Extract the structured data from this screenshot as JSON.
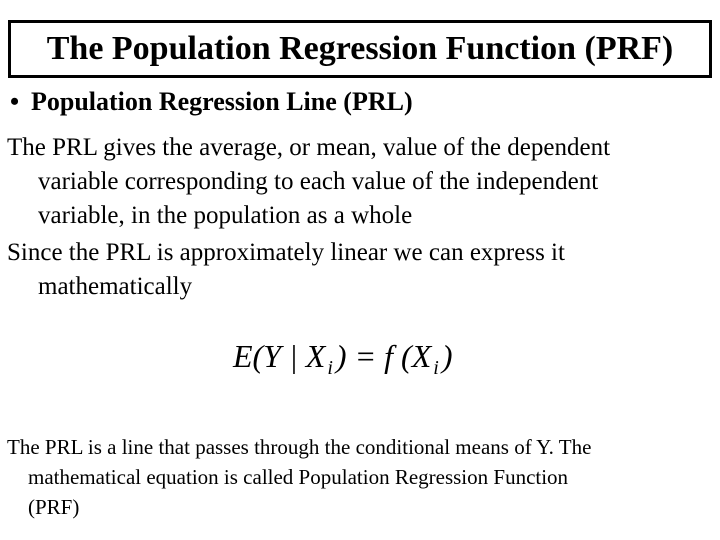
{
  "slide": {
    "title": "The Population Regression Function (PRF)",
    "bullet": {
      "marker": "•",
      "label": "Population Regression Line (PRL)"
    },
    "para_prl_definition": {
      "lines": [
        "The PRL gives the average, or mean, value of the dependent",
        "variable corresponding to each value of the independent",
        "variable, in the population as a whole"
      ]
    },
    "para_linearity": {
      "lines": [
        "Since the PRL is approximately linear we can express it",
        "mathematically"
      ]
    },
    "formula": {
      "lhs": "E(Y | X",
      "sub1": "i",
      "mid": ") = f (X",
      "sub2": "i",
      "end": ")"
    },
    "para_conditional_means": {
      "lines": [
        "The PRL is a line that passes through the conditional means of Y. The",
        "mathematical equation is called Population Regression Function",
        "(PRF)"
      ]
    },
    "colors": {
      "background": "#ffffff",
      "text": "#000000",
      "title_border": "#000000"
    }
  }
}
